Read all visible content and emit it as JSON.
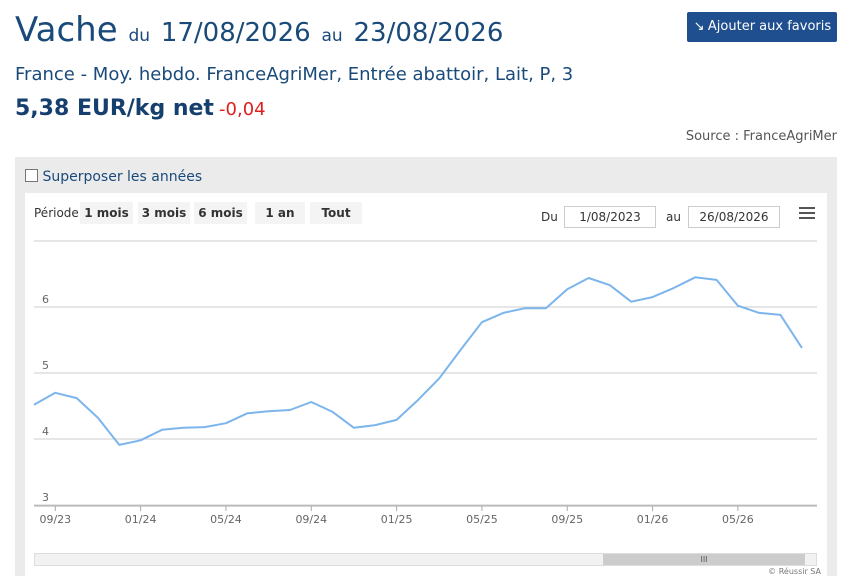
{
  "header": {
    "title": "Vache",
    "from_word": "du",
    "from": "17/08/2026",
    "to_word": "au",
    "to": "23/08/2026",
    "button": "Ajouter aux favoris",
    "subtitle": "France - Moy. hebdo. FranceAgriMer, Entrée abattoir, Lait, P, 3",
    "price": "5,38 EUR/kg net",
    "change": "-0,04",
    "source": "Source : FranceAgriMer"
  },
  "controls": {
    "overlay": "Superposer les années",
    "period_label": "Période",
    "periods": [
      "1 mois",
      "3 mois",
      "6 mois",
      "1 an",
      "Tout"
    ],
    "from_label": "Du",
    "from": "1/08/2023",
    "to_label": "au",
    "to": "26/08/2026"
  },
  "chart_data": {
    "type": "line",
    "categories": [
      null,
      "09/23",
      null,
      null,
      null,
      "01/24",
      null,
      null,
      null,
      "05/24",
      null,
      null,
      null,
      "09/24",
      null,
      null,
      null,
      "01/25",
      null,
      null,
      null,
      "05/25",
      null,
      null,
      null,
      "09/25",
      null,
      null,
      null,
      "01/26",
      null,
      null,
      null,
      "05/26",
      null,
      null,
      null
    ],
    "series": [
      {
        "color": "#7cb5ec",
        "values": [
          4.52,
          4.7,
          4.62,
          4.32,
          3.91,
          3.98,
          4.14,
          4.17,
          4.18,
          4.24,
          4.39,
          4.42,
          4.44,
          4.56,
          4.41,
          4.17,
          4.21,
          4.29,
          4.59,
          4.92,
          5.35,
          5.77,
          5.91,
          5.98,
          5.98,
          6.27,
          6.44,
          6.33,
          6.08,
          6.15,
          6.29,
          6.45,
          6.41,
          6.02,
          5.91,
          5.88,
          5.38
        ]
      }
    ],
    "ylim": [
      3,
      7
    ],
    "yticks": [
      3,
      4,
      5,
      6
    ],
    "grid": true
  },
  "credit": "© Réussir SA"
}
